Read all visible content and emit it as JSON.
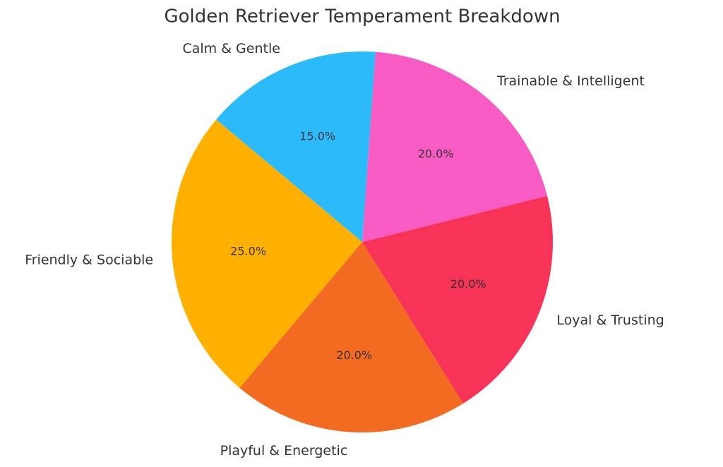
{
  "chart_data": {
    "type": "pie",
    "title": "Golden Retriever Temperament Breakdown",
    "categories": [
      "Friendly & Sociable",
      "Playful & Energetic",
      "Loyal & Trusting",
      "Trainable & Intelligent",
      "Calm & Gentle"
    ],
    "values": [
      25,
      20,
      20,
      20,
      15
    ],
    "value_labels": [
      "25.0%",
      "20.0%",
      "20.0%",
      "20.0%",
      "15.0%"
    ],
    "colors": [
      "#FFB000",
      "#F26B21",
      "#F73357",
      "#F95BC5",
      "#2BBBFB"
    ]
  }
}
